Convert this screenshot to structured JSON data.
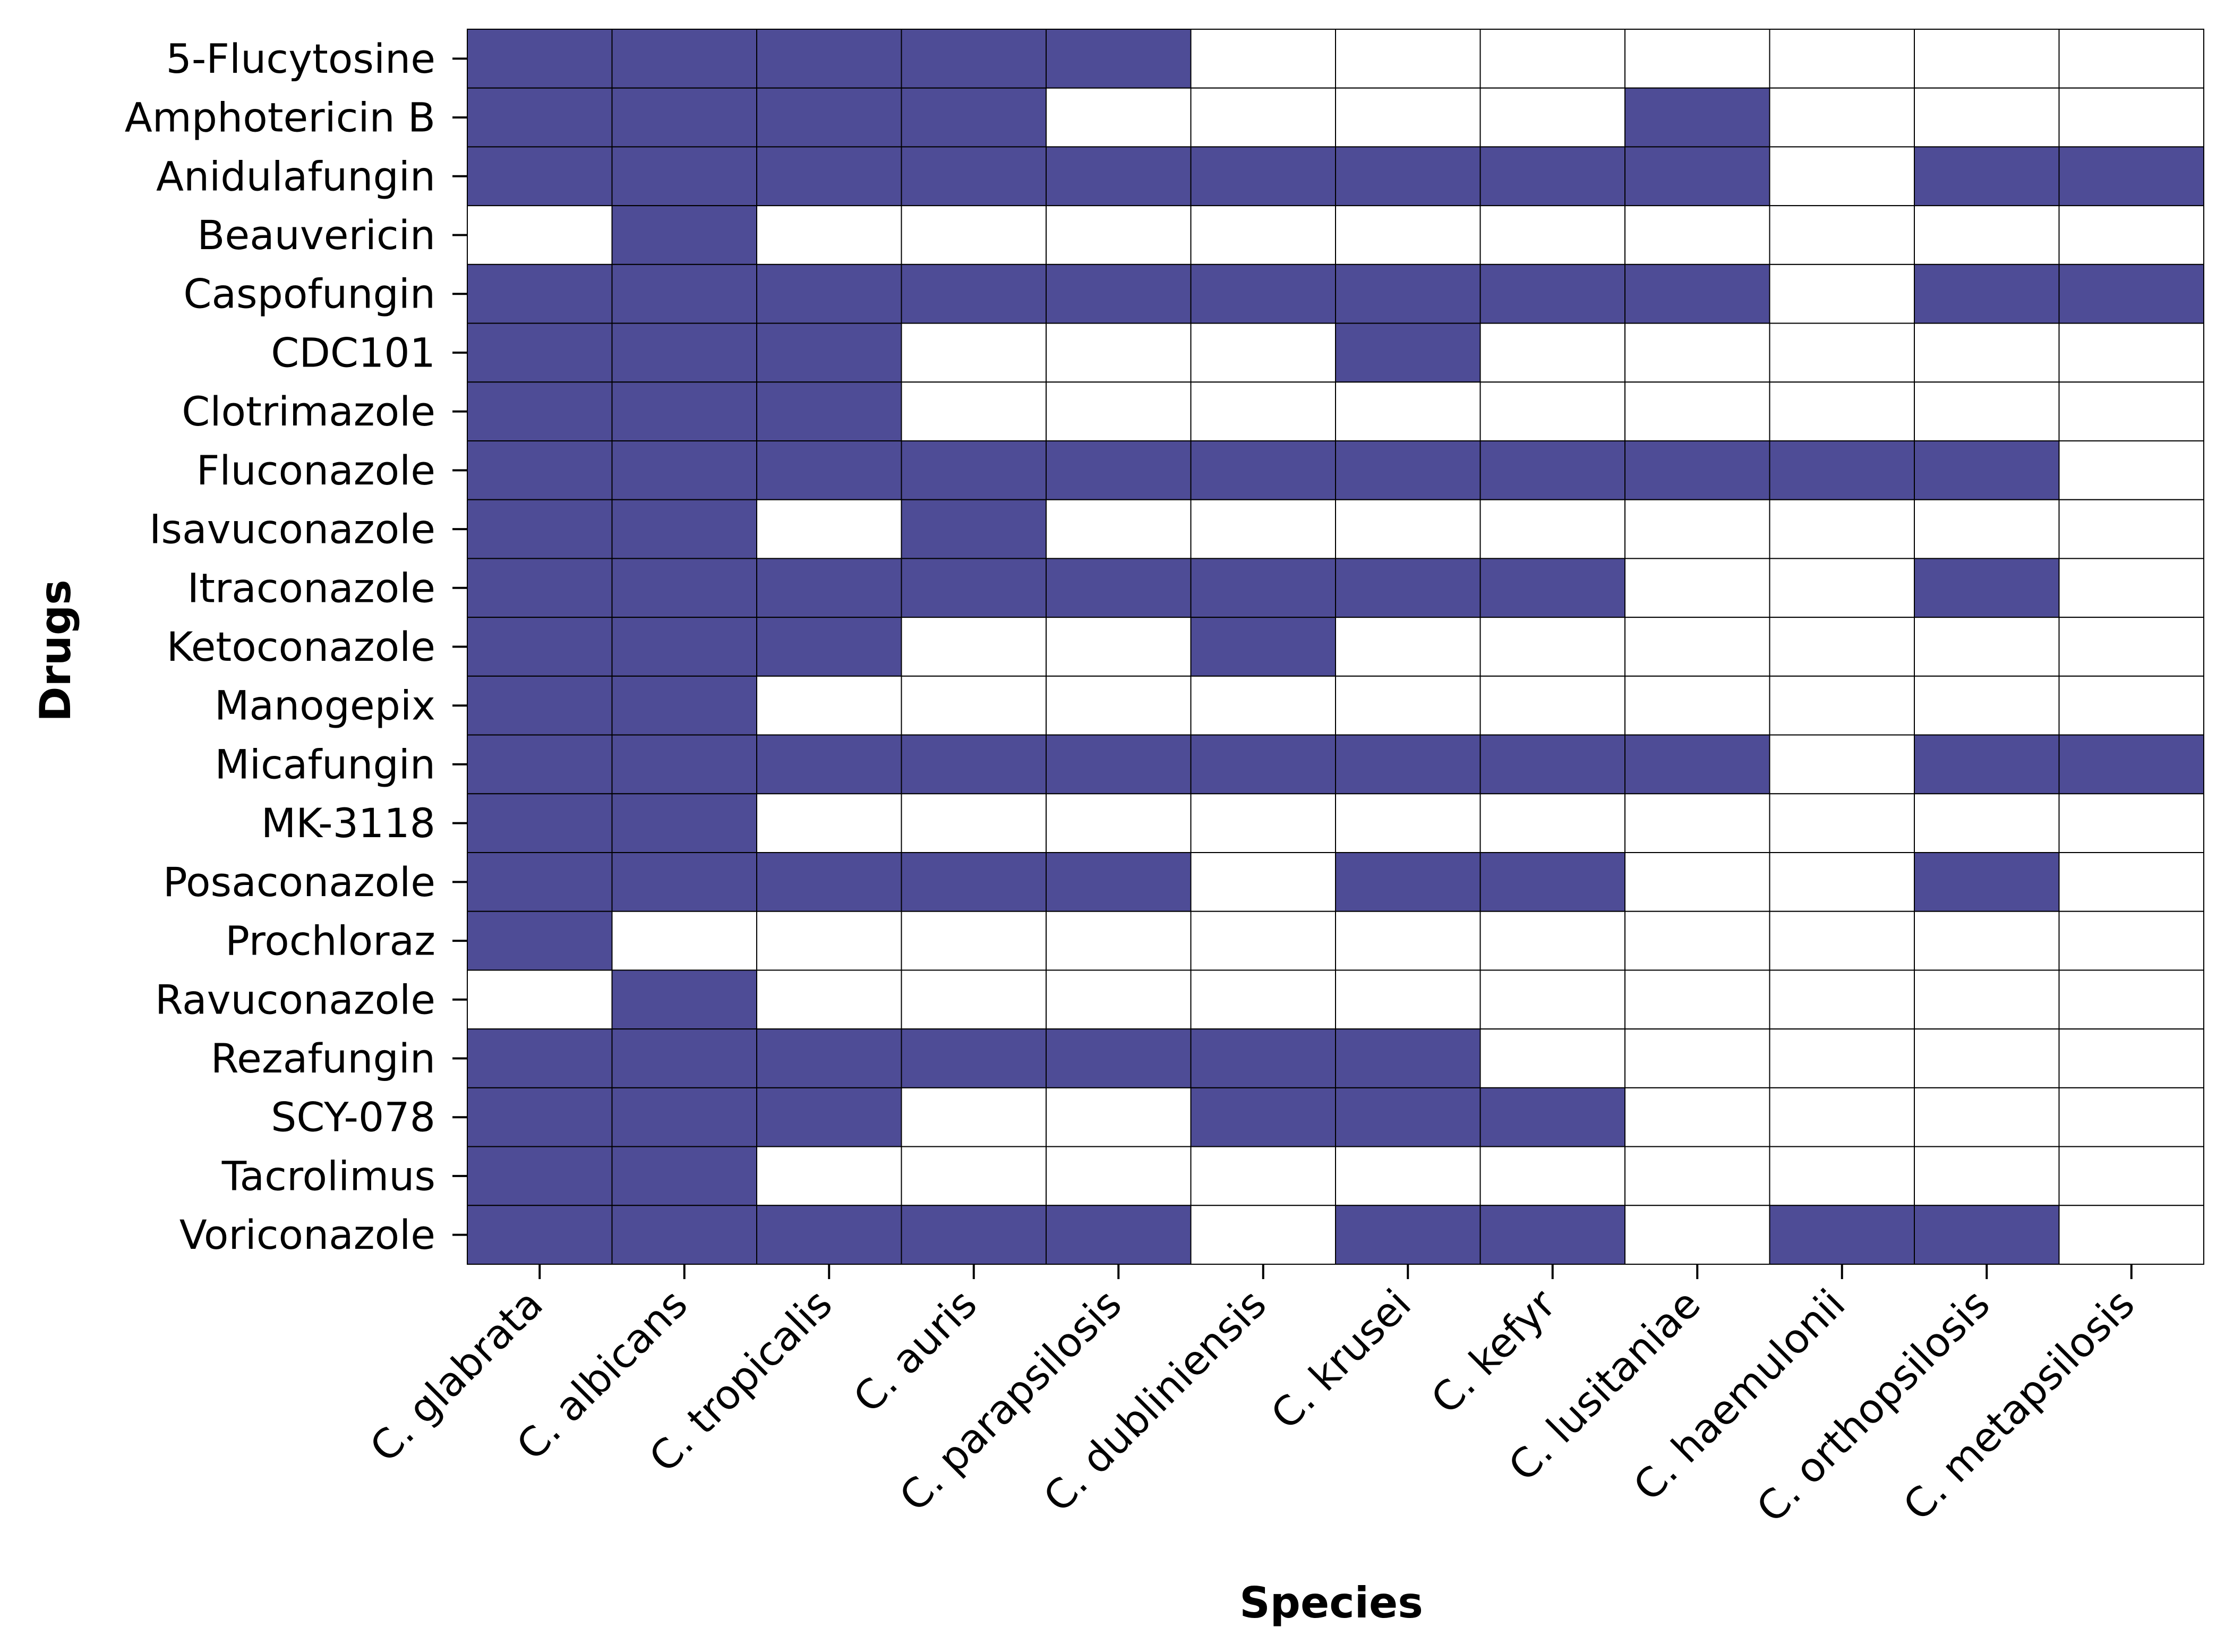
{
  "chart_data": {
    "type": "heatmap",
    "title": "",
    "xlabel": "Species",
    "ylabel": "Drugs",
    "grid": true,
    "legend": "none",
    "colors": {
      "present": "#4e4c96",
      "absent": "#ffffff",
      "gridline": "#000000"
    },
    "x_categories": [
      "C. glabrata",
      "C. albicans",
      "C. tropicalis",
      "C. auris",
      "C. parapsilosis",
      "C. dubliniensis",
      "C. krusei",
      "C. kefyr",
      "C. lusitaniae",
      "C. haemulonii",
      "C. orthopsilosis",
      "C. metapsilosis"
    ],
    "y_categories": [
      "5-Flucytosine",
      "Amphotericin B",
      "Anidulafungin",
      "Beauvericin",
      "Caspofungin",
      "CDC101",
      "Clotrimazole",
      "Fluconazole",
      "Isavuconazole",
      "Itraconazole",
      "Ketoconazole",
      "Manogepix",
      "Micafungin",
      "MK-3118",
      "Posaconazole",
      "Prochloraz",
      "Ravuconazole",
      "Rezafungin",
      "SCY-078",
      "Tacrolimus",
      "Voriconazole"
    ],
    "values": [
      [
        1,
        1,
        1,
        1,
        1,
        0,
        0,
        0,
        0,
        0,
        0,
        0
      ],
      [
        1,
        1,
        1,
        1,
        0,
        0,
        0,
        0,
        1,
        0,
        0,
        0
      ],
      [
        1,
        1,
        1,
        1,
        1,
        1,
        1,
        1,
        1,
        0,
        1,
        1
      ],
      [
        0,
        1,
        0,
        0,
        0,
        0,
        0,
        0,
        0,
        0,
        0,
        0
      ],
      [
        1,
        1,
        1,
        1,
        1,
        1,
        1,
        1,
        1,
        0,
        1,
        1
      ],
      [
        1,
        1,
        1,
        0,
        0,
        0,
        1,
        0,
        0,
        0,
        0,
        0
      ],
      [
        1,
        1,
        1,
        0,
        0,
        0,
        0,
        0,
        0,
        0,
        0,
        0
      ],
      [
        1,
        1,
        1,
        1,
        1,
        1,
        1,
        1,
        1,
        1,
        1,
        0
      ],
      [
        1,
        1,
        0,
        1,
        0,
        0,
        0,
        0,
        0,
        0,
        0,
        0
      ],
      [
        1,
        1,
        1,
        1,
        1,
        1,
        1,
        1,
        0,
        0,
        1,
        0
      ],
      [
        1,
        1,
        1,
        0,
        0,
        1,
        0,
        0,
        0,
        0,
        0,
        0
      ],
      [
        1,
        1,
        0,
        0,
        0,
        0,
        0,
        0,
        0,
        0,
        0,
        0
      ],
      [
        1,
        1,
        1,
        1,
        1,
        1,
        1,
        1,
        1,
        0,
        1,
        1
      ],
      [
        1,
        1,
        0,
        0,
        0,
        0,
        0,
        0,
        0,
        0,
        0,
        0
      ],
      [
        1,
        1,
        1,
        1,
        1,
        0,
        1,
        1,
        0,
        0,
        1,
        0
      ],
      [
        1,
        0,
        0,
        0,
        0,
        0,
        0,
        0,
        0,
        0,
        0,
        0
      ],
      [
        0,
        1,
        0,
        0,
        0,
        0,
        0,
        0,
        0,
        0,
        0,
        0
      ],
      [
        1,
        1,
        1,
        1,
        1,
        1,
        1,
        0,
        0,
        0,
        0,
        0
      ],
      [
        1,
        1,
        1,
        0,
        0,
        1,
        1,
        1,
        0,
        0,
        0,
        0
      ],
      [
        1,
        1,
        0,
        0,
        0,
        0,
        0,
        0,
        0,
        0,
        0,
        0
      ],
      [
        1,
        1,
        1,
        1,
        1,
        0,
        1,
        1,
        0,
        1,
        1,
        0
      ]
    ]
  }
}
